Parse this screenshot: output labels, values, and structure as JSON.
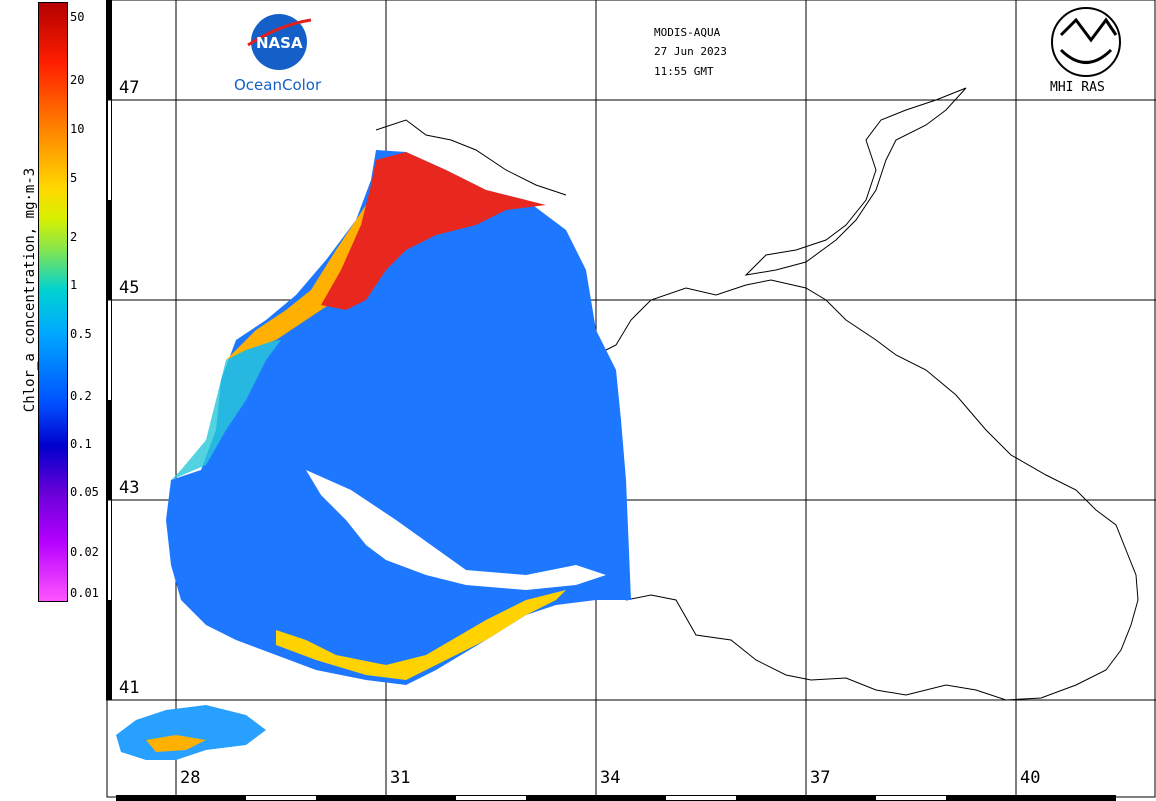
{
  "colorbar": {
    "title": "Chlor_a concentration, mg·m-3",
    "labels": [
      "50",
      "20",
      "10",
      "5",
      "2",
      "1",
      "0.5",
      "0.2",
      "0.1",
      "0.05",
      "0.02",
      "0.01"
    ]
  },
  "header": {
    "sensor": "MODIS-AQUA",
    "date": "27 Jun 2023",
    "time": "11:55 GMT"
  },
  "logos": {
    "nasa_text": "NASA",
    "oceancolor": "OceanColor",
    "mhi": "MHI RAS"
  },
  "latitudes": [
    "47",
    "45",
    "43",
    "41"
  ],
  "longitudes": [
    "28",
    "31",
    "34",
    "37",
    "40"
  ],
  "colors": {
    "high": "#e8281e",
    "mid": "#ffb000",
    "low": "#1e78ff",
    "shelf": "#28c8d8"
  }
}
